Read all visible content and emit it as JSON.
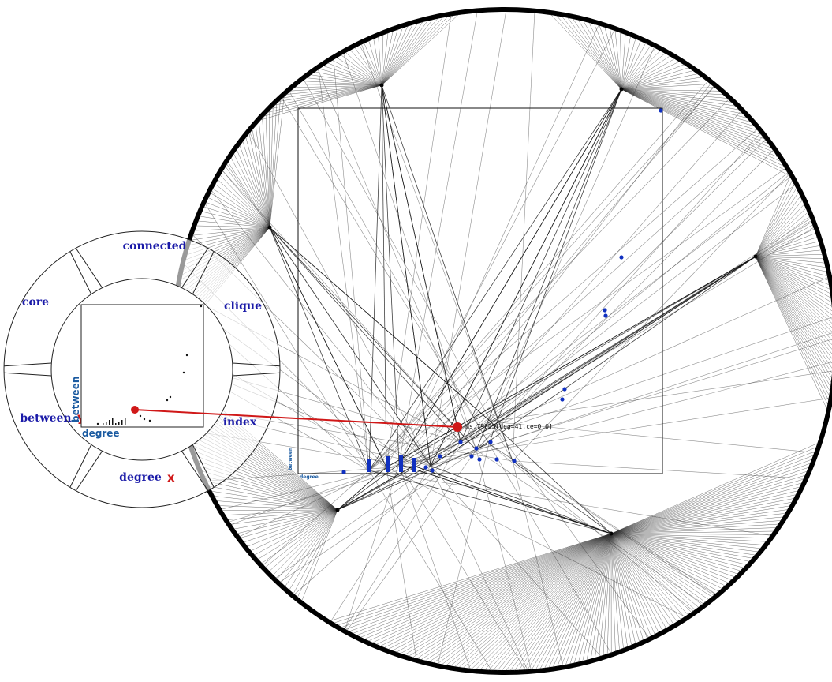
{
  "wheel_menu": {
    "items": [
      {
        "id": "connected",
        "label": "connected"
      },
      {
        "id": "clique",
        "label": "clique"
      },
      {
        "id": "index",
        "label": "index"
      },
      {
        "id": "degree",
        "label": "degree"
      },
      {
        "id": "between",
        "label": "between"
      },
      {
        "id": "core",
        "label": "core"
      }
    ],
    "x_marker": "x",
    "y_marker": "y"
  },
  "mini_plot": {
    "xlabel": "degree",
    "ylabel": "between"
  },
  "main_plot": {
    "xlabel": "degree",
    "ylabel": "between"
  },
  "tooltip": {
    "text": "Hs.79005[deg=41,ce=0.0]"
  },
  "colors": {
    "accent_red": "#d01818",
    "label_blue": "#1a1aa8",
    "axis_blue": "#1a5aa0",
    "point_blue": "#1030c0",
    "edge_gray": "#333333"
  }
}
